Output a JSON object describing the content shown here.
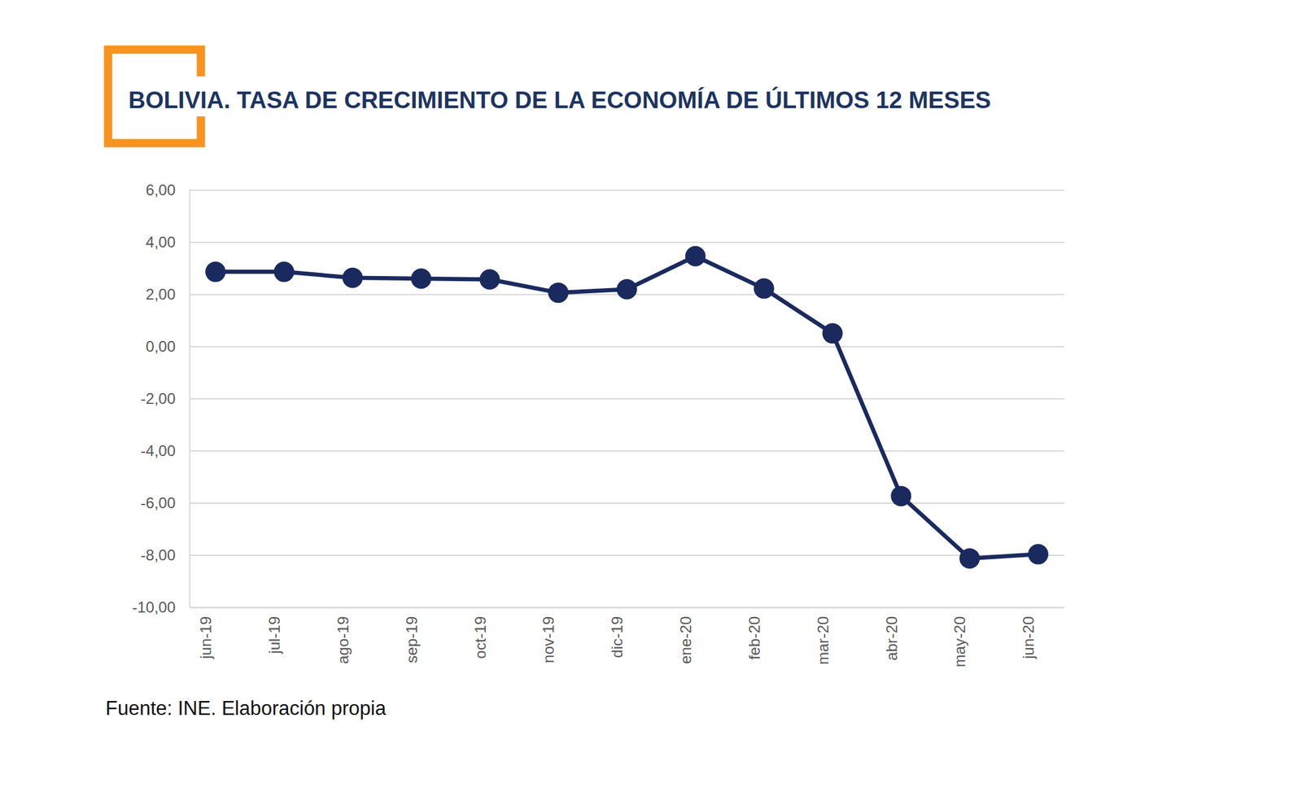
{
  "chart_data": {
    "type": "line",
    "title": "BOLIVIA. TASA DE CRECIMIENTO DE LA ECONOMÍA DE ÚLTIMOS 12 MESES",
    "annotations": [
      "Fuente: INE. Elaboración propia"
    ],
    "categories": [
      "jun-19",
      "jul-19",
      "ago-19",
      "sep-19",
      "oct-19",
      "nov-19",
      "dic-19",
      "ene-20",
      "feb-20",
      "mar-20",
      "abr-20",
      "may-20",
      "jun-20"
    ],
    "values": [
      2.87,
      2.87,
      2.64,
      2.61,
      2.58,
      2.07,
      2.2,
      3.47,
      2.23,
      0.51,
      -5.73,
      -8.12,
      -7.96
    ],
    "color": "#1b2a5e",
    "marker": "circle",
    "ylim": [
      -10,
      6
    ],
    "yticks": [
      {
        "value": -10,
        "label": "-10,00"
      },
      {
        "value": -8,
        "label": "-8,00"
      },
      {
        "value": -6,
        "label": "-6,00"
      },
      {
        "value": -4,
        "label": "-4,00"
      },
      {
        "value": -2,
        "label": "-2,00"
      },
      {
        "value": 0,
        "label": "0,00"
      },
      {
        "value": 2,
        "label": "2,00"
      },
      {
        "value": 4,
        "label": "4,00"
      },
      {
        "value": 6,
        "label": "6,00"
      }
    ],
    "grid": true
  }
}
